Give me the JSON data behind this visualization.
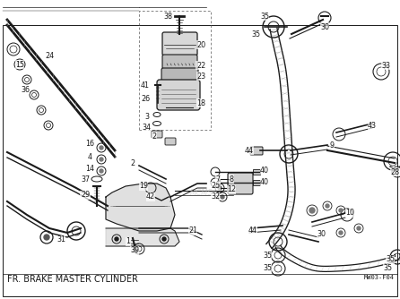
{
  "title": "FR. BRAKE MASTER CYLINDER",
  "part_number_label": "MW03-F04",
  "background_color": "#ffffff",
  "line_color": "#1a1a1a",
  "text_color": "#1a1a1a",
  "fig_width": 4.46,
  "fig_height": 3.34,
  "dpi": 100,
  "title_fontsize": 7.0,
  "pnum_fontsize": 5.8
}
